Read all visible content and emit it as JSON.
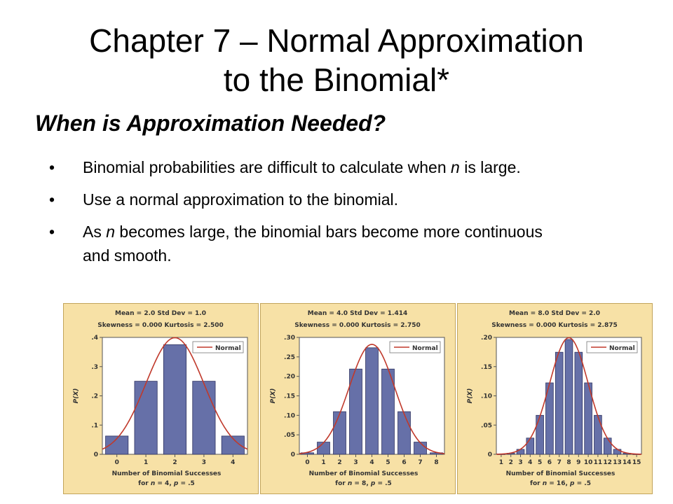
{
  "slide": {
    "title_line1": "Chapter 7 – Normal Approximation",
    "title_line2": "to the Binomial*",
    "subtitle": "When is Approximation Needed?",
    "bullet_glyph": "•",
    "bullets": [
      {
        "pre": "Binomial probabilities are difficult to calculate when ",
        "em": "n",
        "post": " is large."
      },
      {
        "pre": "Use a normal approximation to the binomial.",
        "em": "",
        "post": ""
      },
      {
        "pre": "As ",
        "em": "n",
        "post": " becomes large, the binomial bars become more continuous and smooth."
      }
    ]
  },
  "colors": {
    "bar": "#6670a8",
    "bar_edge": "#2f3360",
    "curve": "#c0392b",
    "panel_bg": "#f7e1a6"
  },
  "chart_data": [
    {
      "type": "bar",
      "stats_line1": "Mean = 2.0 Std Dev = 1.0",
      "stats_line2": "Skewness = 0.000 Kurtosis = 2.500",
      "legend": "Normal",
      "ylabel": "P(X)",
      "xlabel": "Number of Binomial Successes",
      "caption_pre": "for ",
      "caption_n": "n",
      "caption_mid": " = 4, ",
      "caption_p": "p",
      "caption_post": " = .5",
      "x": [
        0,
        1,
        2,
        3,
        4
      ],
      "values": [
        0.0625,
        0.25,
        0.375,
        0.25,
        0.0625
      ],
      "xlim": [
        -0.5,
        4.5
      ],
      "ylim": [
        0,
        0.4
      ],
      "yticks": [
        0,
        0.1,
        0.2,
        0.3,
        0.4
      ],
      "ytick_labels": [
        "0",
        ".1",
        ".2",
        ".3",
        ".4"
      ],
      "xtick_labels": [
        "0",
        "1",
        "2",
        "3",
        "4"
      ],
      "mean": 2.0,
      "sd": 1.0
    },
    {
      "type": "bar",
      "stats_line1": "Mean = 4.0 Std Dev = 1.414",
      "stats_line2": "Skewness = 0.000 Kurtosis = 2.750",
      "legend": "Normal",
      "ylabel": "P(X)",
      "xlabel": "Number of Binomial Successes",
      "caption_pre": "for ",
      "caption_n": "n",
      "caption_mid": " = 8, ",
      "caption_p": "p",
      "caption_post": " = .5",
      "x": [
        0,
        1,
        2,
        3,
        4,
        5,
        6,
        7,
        8
      ],
      "values": [
        0.0039,
        0.0313,
        0.1094,
        0.2188,
        0.2734,
        0.2188,
        0.1094,
        0.0313,
        0.0039
      ],
      "xlim": [
        -0.5,
        8.5
      ],
      "ylim": [
        0,
        0.3
      ],
      "yticks": [
        0,
        0.05,
        0.1,
        0.15,
        0.2,
        0.25,
        0.3
      ],
      "ytick_labels": [
        "0",
        ".05",
        ".10",
        ".15",
        ".20",
        ".25",
        ".30"
      ],
      "xtick_labels": [
        "0",
        "1",
        "2",
        "3",
        "4",
        "5",
        "6",
        "7",
        "8"
      ],
      "mean": 4.0,
      "sd": 1.414
    },
    {
      "type": "bar",
      "stats_line1": "Mean = 8.0 Std Dev = 2.0",
      "stats_line2": "Skewness = 0.000 Kurtosis = 2.875",
      "legend": "Normal",
      "ylabel": "P(X)",
      "xlabel": "Number of Binomial Successes",
      "caption_pre": "for ",
      "caption_n": "n",
      "caption_mid": " = 16, ",
      "caption_p": "p",
      "caption_post": " = .5",
      "x": [
        1,
        2,
        3,
        4,
        5,
        6,
        7,
        8,
        9,
        10,
        11,
        12,
        13,
        14,
        15
      ],
      "values": [
        0.0002,
        0.0018,
        0.0085,
        0.0278,
        0.0667,
        0.1222,
        0.1746,
        0.1964,
        0.1746,
        0.1222,
        0.0667,
        0.0278,
        0.0085,
        0.0018,
        0.0002
      ],
      "xlim": [
        0.5,
        15.5
      ],
      "ylim": [
        0,
        0.2
      ],
      "yticks": [
        0,
        0.05,
        0.1,
        0.15,
        0.2
      ],
      "ytick_labels": [
        "0",
        ".05",
        ".10",
        ".15",
        ".20"
      ],
      "xtick_labels": [
        "1",
        "2",
        "3",
        "4",
        "5",
        "6",
        "7",
        "8",
        "9",
        "10",
        "11",
        "12",
        "13",
        "14",
        "15"
      ],
      "mean": 8.0,
      "sd": 2.0
    }
  ]
}
